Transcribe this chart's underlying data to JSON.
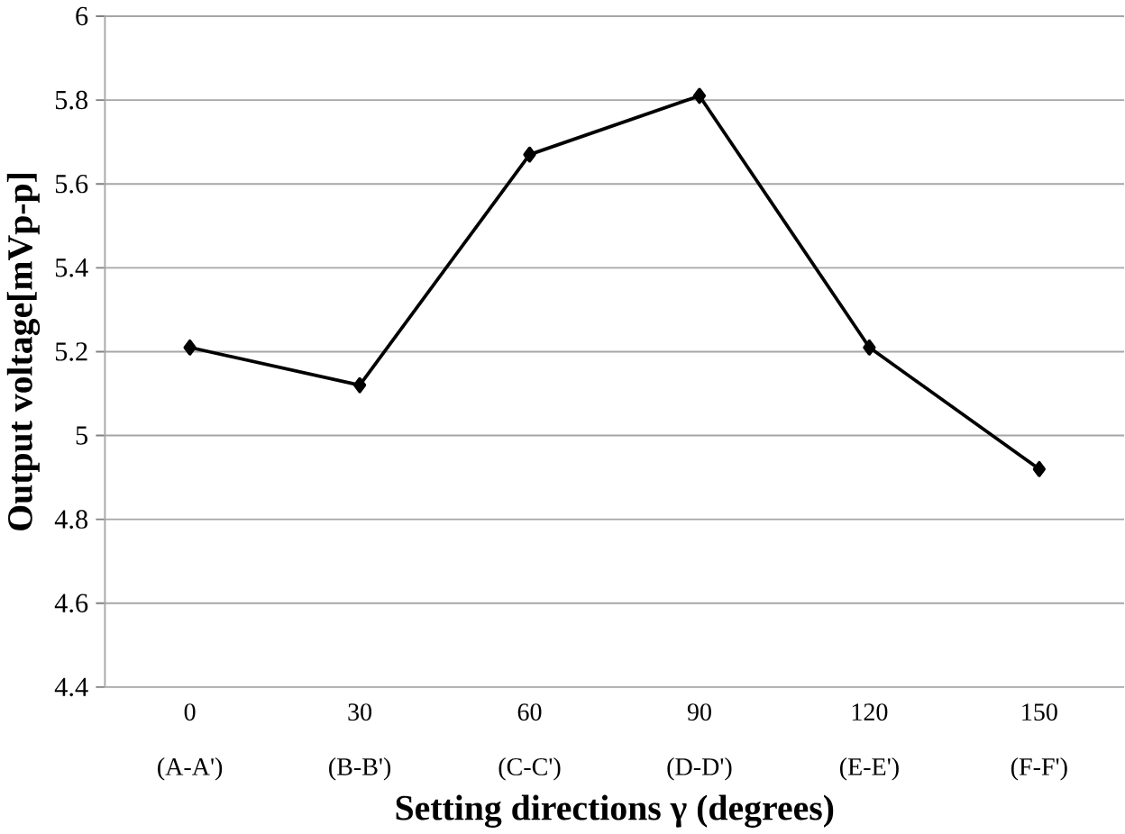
{
  "chart_data": {
    "type": "line",
    "xlabel": "Setting directions γ (degrees)",
    "ylabel": "Output voltage[mVp-p]",
    "categories": [
      "0 (A-A')",
      "30 (B-B')",
      "60 (C-C')",
      "90 (D-D')",
      "120 (E-E')",
      "150 (F-F')"
    ],
    "series": [
      {
        "color": "#000000",
        "values": [
          5.21,
          5.12,
          5.67,
          5.81,
          5.21,
          4.92
        ]
      }
    ],
    "ylim": [
      4.4,
      6
    ],
    "yticks": [
      4.4,
      4.6,
      4.8,
      5,
      5.2,
      5.4,
      5.6,
      5.8,
      6
    ],
    "grid": "y",
    "marker": "diamond",
    "line_style": "solid"
  }
}
